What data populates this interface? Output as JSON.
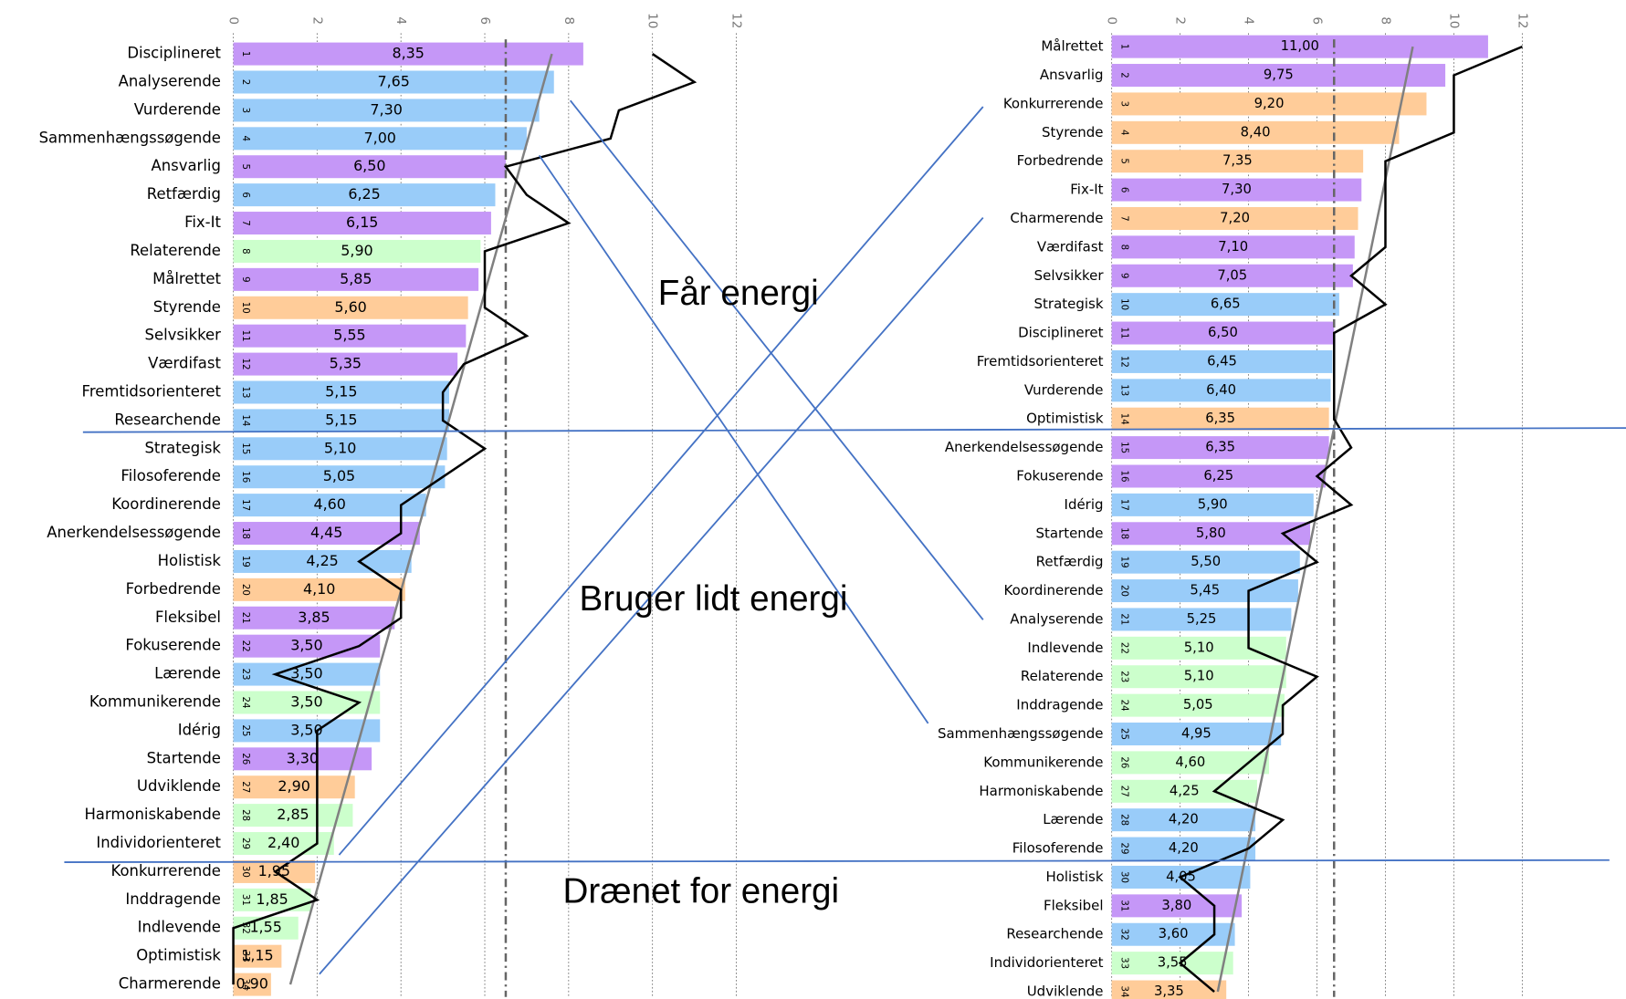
{
  "chart_data": [
    {
      "type": "bar",
      "orientation": "horizontal",
      "grid": true,
      "categories": [
        "Disciplineret",
        "Analyserende",
        "Vurderende",
        "Sammenhængssøgende",
        "Ansvarlig",
        "Retfærdig",
        "Fix-It",
        "Relaterende",
        "Målrettet",
        "Styrende",
        "Selvsikker",
        "Værdifast",
        "Fremtidsorienteret",
        "Researchende",
        "Strategisk",
        "Filosoferende",
        "Koordinerende",
        "Anerkendelsessøgende",
        "Holistisk",
        "Forbedrende",
        "Fleksibel",
        "Fokuserende",
        "Lærende",
        "Kommunikerende",
        "Idérig",
        "Startende",
        "Udviklende",
        "Harmoniskabende",
        "Individorienteret",
        "Konkurrerende",
        "Inddragende",
        "Indlevende",
        "Optimistisk",
        "Charmerende"
      ],
      "ranks": [
        1,
        2,
        3,
        4,
        5,
        6,
        7,
        8,
        9,
        10,
        11,
        12,
        13,
        14,
        15,
        16,
        17,
        18,
        19,
        20,
        21,
        22,
        23,
        24,
        25,
        26,
        27,
        28,
        29,
        30,
        31,
        32,
        33,
        34
      ],
      "values": [
        8.35,
        7.65,
        7.3,
        7.0,
        6.5,
        6.25,
        6.15,
        5.9,
        5.85,
        5.6,
        5.55,
        5.35,
        5.15,
        5.15,
        5.1,
        5.05,
        4.6,
        4.45,
        4.25,
        4.1,
        3.85,
        3.5,
        3.5,
        3.5,
        3.5,
        3.3,
        2.9,
        2.85,
        2.4,
        1.95,
        1.85,
        1.55,
        1.15,
        0.9
      ],
      "value_labels": [
        "8,35",
        "7,65",
        "7,30",
        "7,00",
        "6,50",
        "6,25",
        "6,15",
        "5,90",
        "5,85",
        "5,60",
        "5,55",
        "5,35",
        "5,15",
        "5,15",
        "5,10",
        "5,05",
        "4,60",
        "4,45",
        "4,25",
        "4,10",
        "3,85",
        "3,50",
        "3,50",
        "3,50",
        "3,50",
        "3,30",
        "2,90",
        "2,85",
        "2,40",
        "1,95",
        "1,85",
        "1,55",
        "1,15",
        "0,90"
      ],
      "colors": [
        "#c597f7",
        "#99ccf9",
        "#99ccf9",
        "#99ccf9",
        "#c597f7",
        "#99ccf9",
        "#c597f7",
        "#ccffcc",
        "#c597f7",
        "#ffcc99",
        "#c597f7",
        "#c597f7",
        "#99ccf9",
        "#99ccf9",
        "#99ccf9",
        "#99ccf9",
        "#99ccf9",
        "#c597f7",
        "#99ccf9",
        "#ffcc99",
        "#c597f7",
        "#c597f7",
        "#99ccf9",
        "#ccffcc",
        "#99ccf9",
        "#c597f7",
        "#ffcc99",
        "#ccffcc",
        "#ccffcc",
        "#ffcc99",
        "#ccffcc",
        "#ccffcc",
        "#ffcc99",
        "#ffcc99"
      ],
      "xlim": [
        0,
        12
      ],
      "xticks": [
        0,
        2,
        4,
        6,
        8,
        10,
        12
      ],
      "line": {
        "color": "#000000",
        "values": [
          10,
          11,
          9.2,
          9,
          6.5,
          7,
          8,
          6,
          6,
          6,
          7,
          5.5,
          5,
          5,
          6,
          5,
          4,
          4,
          3,
          4,
          4,
          3,
          1,
          3,
          2,
          2,
          2,
          2,
          2,
          1,
          2,
          0,
          0,
          0
        ]
      },
      "trendline": {
        "color": "#808080",
        "values": [
          7.6,
          1.36
        ]
      },
      "reference_line": {
        "color": "#666666",
        "value": 6.5
      }
    },
    {
      "type": "bar",
      "orientation": "horizontal",
      "grid": true,
      "categories": [
        "Målrettet",
        "Ansvarlig",
        "Konkurrerende",
        "Styrende",
        "Forbedrende",
        "Fix-It",
        "Charmerende",
        "Værdifast",
        "Selvsikker",
        "Strategisk",
        "Disciplineret",
        "Fremtidsorienteret",
        "Vurderende",
        "Optimistisk",
        "Anerkendelsessøgende",
        "Fokuserende",
        "Idérig",
        "Startende",
        "Retfærdig",
        "Koordinerende",
        "Analyserende",
        "Indlevende",
        "Relaterende",
        "Inddragende",
        "Sammenhængssøgende",
        "Kommunikerende",
        "Harmoniskabende",
        "Lærende",
        "Filosoferende",
        "Holistisk",
        "Fleksibel",
        "Researchende",
        "Individorienteret",
        "Udviklende"
      ],
      "ranks": [
        1,
        2,
        3,
        4,
        5,
        6,
        7,
        8,
        9,
        10,
        11,
        12,
        13,
        14,
        15,
        16,
        17,
        18,
        19,
        20,
        21,
        22,
        23,
        24,
        25,
        26,
        27,
        28,
        29,
        30,
        31,
        32,
        33,
        34
      ],
      "values": [
        11.0,
        9.75,
        9.2,
        8.4,
        7.35,
        7.3,
        7.2,
        7.1,
        7.05,
        6.65,
        6.5,
        6.45,
        6.4,
        6.35,
        6.35,
        6.25,
        5.9,
        5.8,
        5.5,
        5.45,
        5.25,
        5.1,
        5.1,
        5.05,
        4.95,
        4.6,
        4.25,
        4.2,
        4.2,
        4.05,
        3.8,
        3.6,
        3.55,
        3.35
      ],
      "value_labels": [
        "11,00",
        "9,75",
        "9,20",
        "8,40",
        "7,35",
        "7,30",
        "7,20",
        "7,10",
        "7,05",
        "6,65",
        "6,50",
        "6,45",
        "6,40",
        "6,35",
        "6,35",
        "6,25",
        "5,90",
        "5,80",
        "5,50",
        "5,45",
        "5,25",
        "5,10",
        "5,10",
        "5,05",
        "4,95",
        "4,60",
        "4,25",
        "4,20",
        "4,20",
        "4,05",
        "3,80",
        "3,60",
        "3,55",
        "3,35"
      ],
      "colors": [
        "#c597f7",
        "#c597f7",
        "#ffcc99",
        "#ffcc99",
        "#ffcc99",
        "#c597f7",
        "#ffcc99",
        "#c597f7",
        "#c597f7",
        "#99ccf9",
        "#c597f7",
        "#99ccf9",
        "#99ccf9",
        "#ffcc99",
        "#c597f7",
        "#c597f7",
        "#99ccf9",
        "#c597f7",
        "#99ccf9",
        "#99ccf9",
        "#99ccf9",
        "#ccffcc",
        "#ccffcc",
        "#ccffcc",
        "#99ccf9",
        "#ccffcc",
        "#ccffcc",
        "#99ccf9",
        "#99ccf9",
        "#99ccf9",
        "#c597f7",
        "#99ccf9",
        "#ccffcc",
        "#ffcc99"
      ],
      "xlim": [
        0,
        12
      ],
      "xticks": [
        0,
        2,
        4,
        6,
        8,
        10,
        12
      ],
      "line": {
        "color": "#000000",
        "values": [
          12,
          10,
          10,
          10,
          8,
          8,
          8,
          8,
          7,
          8,
          6.5,
          6.5,
          6.5,
          6.5,
          7,
          6,
          7,
          5,
          6,
          4,
          4,
          4,
          6,
          5,
          5,
          4,
          3,
          5,
          4,
          2,
          3,
          3,
          2,
          3
        ]
      },
      "trendline": {
        "color": "#808080",
        "values": [
          8.8,
          3.1
        ]
      },
      "reference_line": {
        "color": "#666666",
        "value": 6.5
      }
    }
  ],
  "annotations": [
    "Får energi",
    "Bruger lidt energi",
    "Drænet for energi"
  ]
}
